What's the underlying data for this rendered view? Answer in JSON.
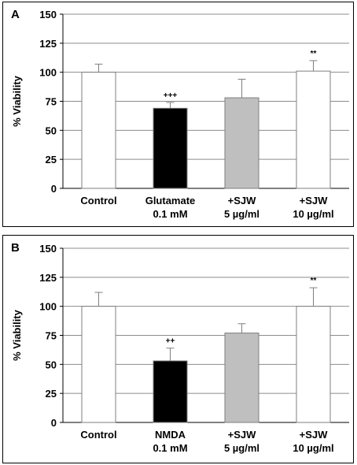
{
  "chart_data": [
    {
      "panel_label": "A",
      "type": "bar",
      "ylabel": "% Viability",
      "ylim": [
        0,
        150
      ],
      "yticks": [
        0,
        25,
        50,
        75,
        100,
        125,
        150
      ],
      "grid": true,
      "categories": [
        {
          "line1": "Control",
          "line2": ""
        },
        {
          "line1": "Glutamate",
          "line2": "0.1 mM"
        },
        {
          "line1": "+SJW",
          "line2": "5 µg/ml"
        },
        {
          "line1": "+SJW",
          "line2": "10 µg/ml"
        }
      ],
      "values": [
        100,
        69,
        78,
        101
      ],
      "errors": [
        7,
        5,
        16,
        9
      ],
      "annotations": [
        "",
        "+++",
        "",
        "**"
      ],
      "colors": [
        "#ffffff",
        "#000000",
        "#bfbfbf",
        "#ffffff"
      ]
    },
    {
      "panel_label": "B",
      "type": "bar",
      "ylabel": "% Viability",
      "ylim": [
        0,
        150
      ],
      "yticks": [
        0,
        25,
        50,
        75,
        100,
        125,
        150
      ],
      "grid": true,
      "categories": [
        {
          "line1": "Control",
          "line2": ""
        },
        {
          "line1": "NMDA",
          "line2": "0.1 mM"
        },
        {
          "line1": "+SJW",
          "line2": "5 µg/ml"
        },
        {
          "line1": "+SJW",
          "line2": "10 µg/ml"
        }
      ],
      "values": [
        100,
        53,
        77,
        100
      ],
      "errors": [
        12,
        11,
        8,
        16
      ],
      "annotations": [
        "",
        "++",
        "",
        "**"
      ],
      "colors": [
        "#ffffff",
        "#000000",
        "#bfbfbf",
        "#ffffff"
      ]
    }
  ]
}
